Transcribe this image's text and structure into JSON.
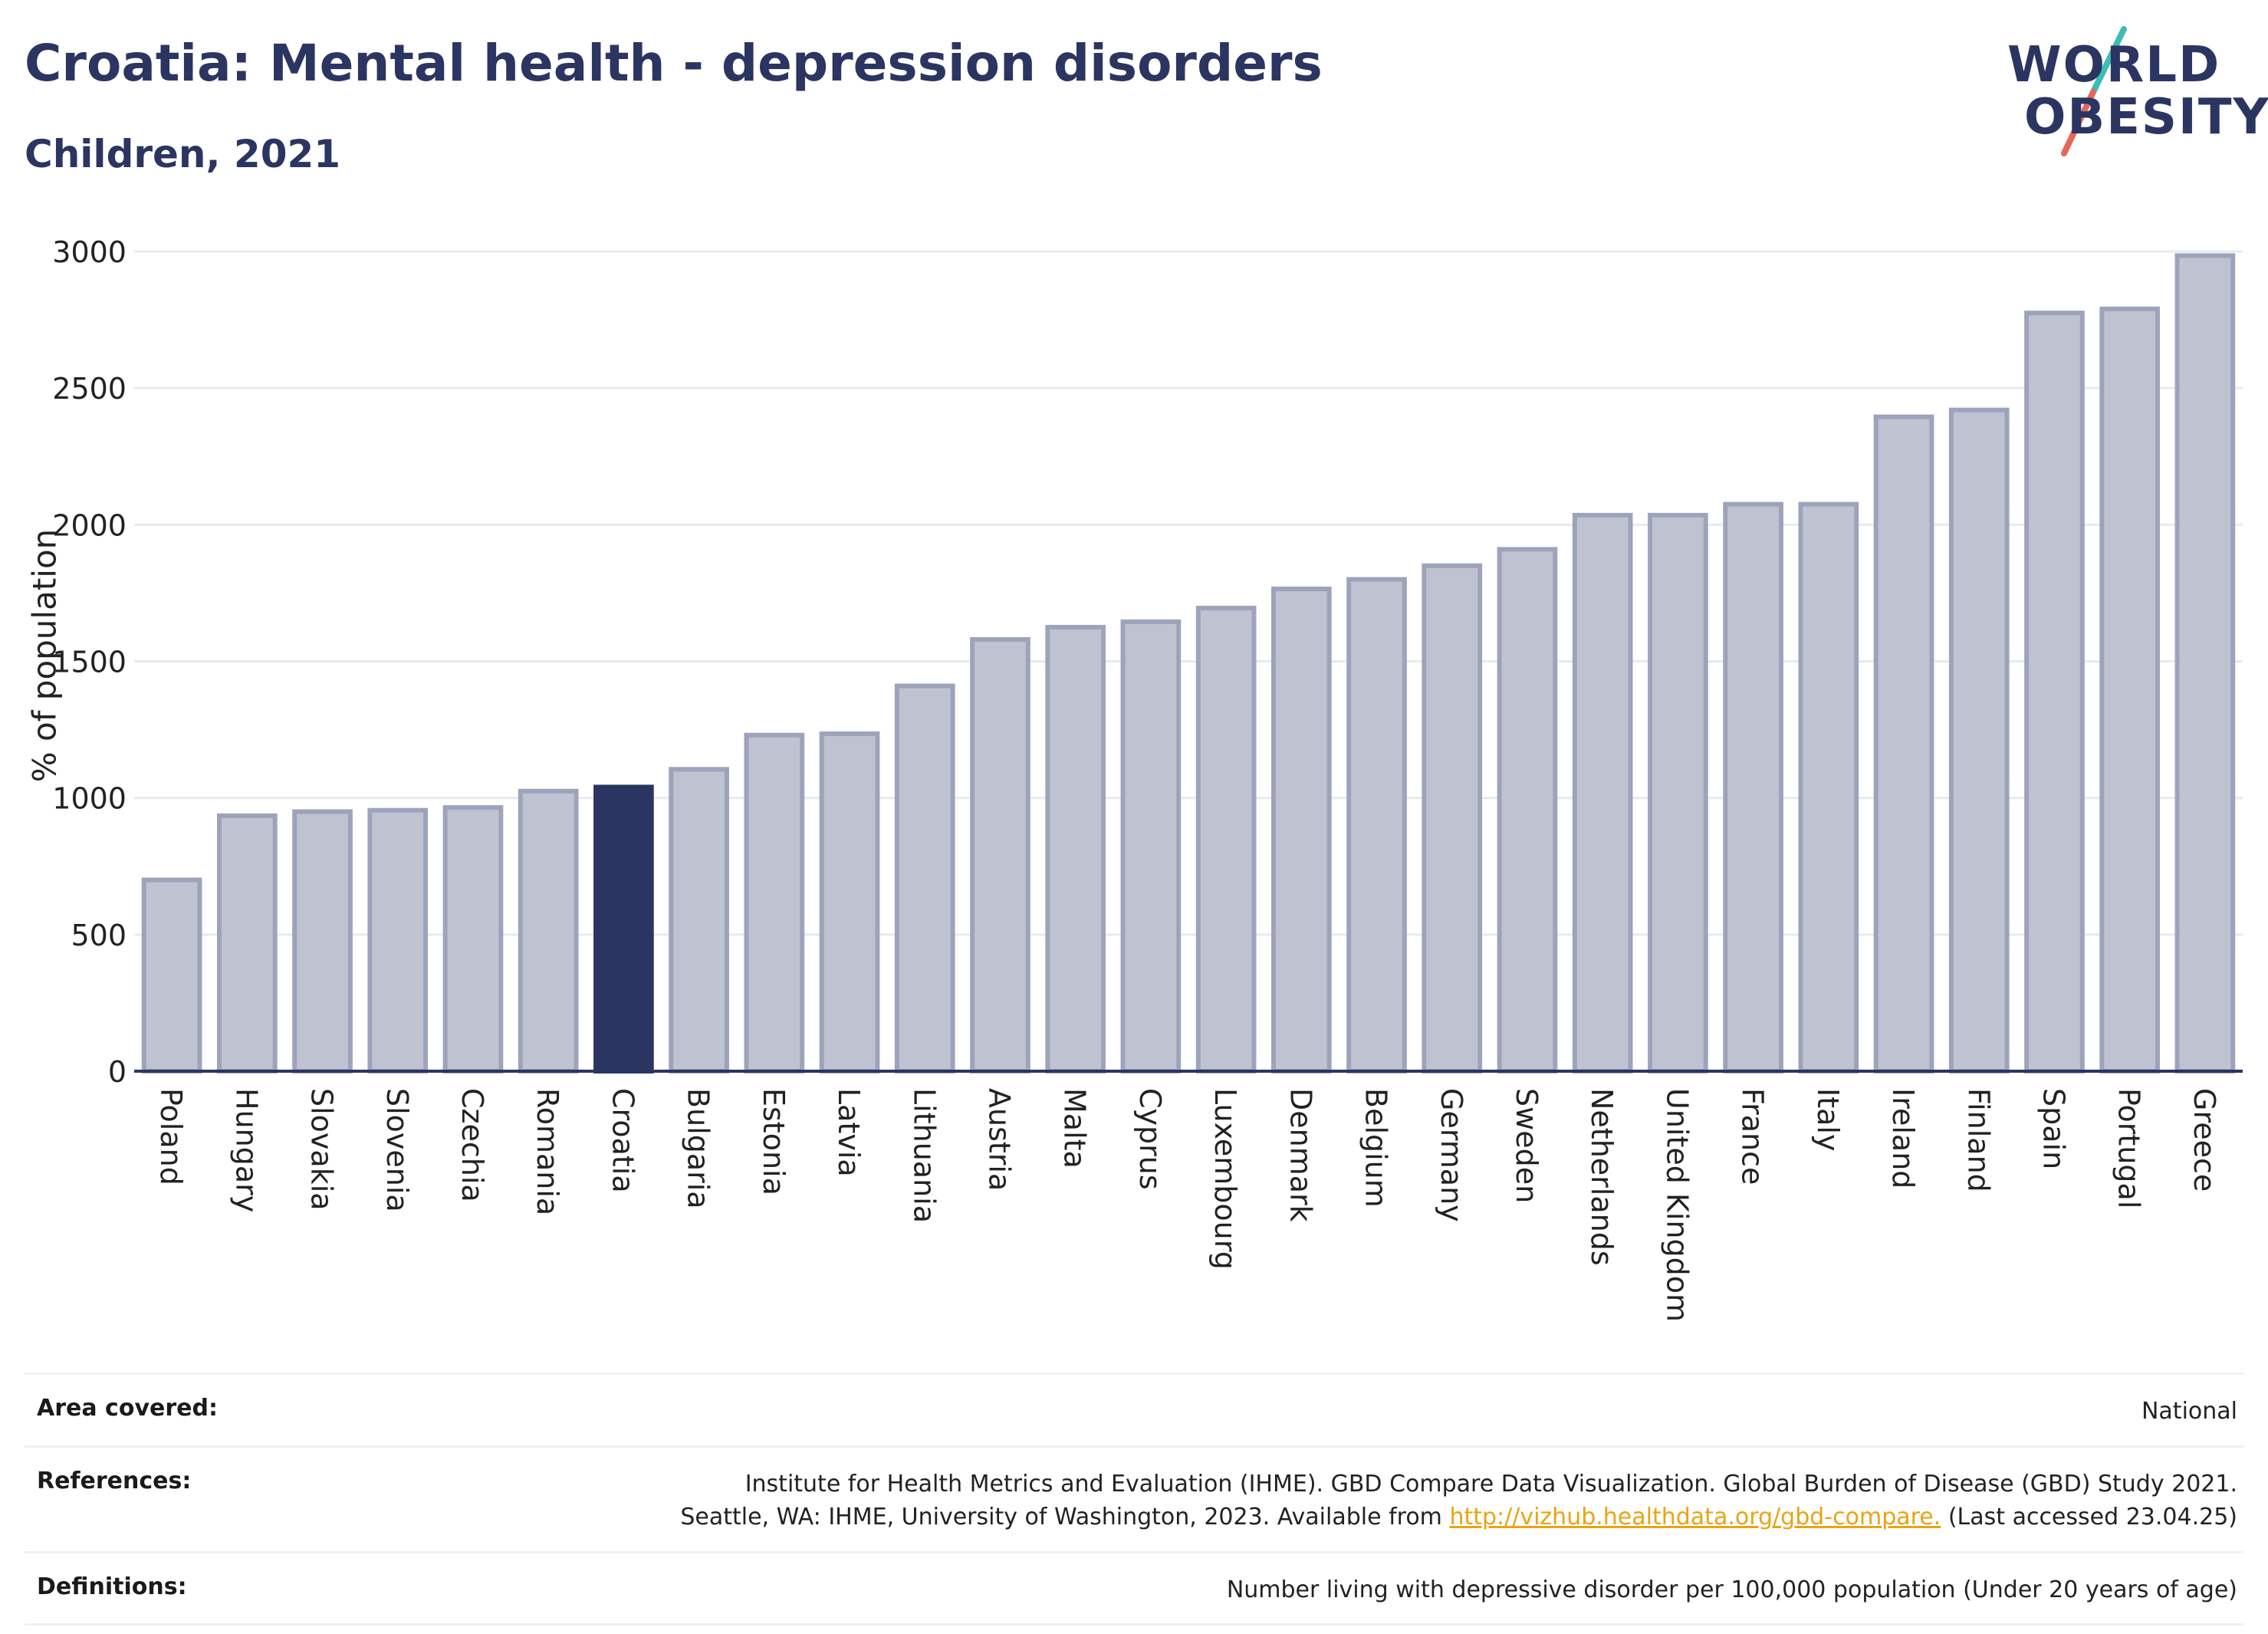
{
  "header": {
    "title": "Croatia: Mental health - depression disorders",
    "subtitle": "Children, 2021"
  },
  "logo": {
    "line1": "WORLD",
    "line2": "OBESITY",
    "slash_colors": [
      "#3bbdb3",
      "#e4685a"
    ]
  },
  "colors": {
    "highlight": "#2b3561",
    "bar": "#bfc3d1",
    "bar_edge": "#9da3bb",
    "axis": "#2b3561"
  },
  "chart_data": {
    "type": "bar",
    "ylabel": "% of population",
    "ylim": [
      0,
      3000
    ],
    "yticks": [
      0,
      500,
      1000,
      1500,
      2000,
      2500,
      3000
    ],
    "grid": true,
    "highlight": "Croatia",
    "categories": [
      "Poland",
      "Hungary",
      "Slovakia",
      "Slovenia",
      "Czechia",
      "Romania",
      "Croatia",
      "Bulgaria",
      "Estonia",
      "Latvia",
      "Lithuania",
      "Austria",
      "Malta",
      "Cyprus",
      "Luxembourg",
      "Denmark",
      "Belgium",
      "Germany",
      "Sweden",
      "Netherlands",
      "United Kingdom",
      "France",
      "Italy",
      "Ireland",
      "Finland",
      "Spain",
      "Portugal",
      "Greece"
    ],
    "values": [
      700,
      935,
      950,
      955,
      965,
      1025,
      1040,
      1105,
      1230,
      1235,
      1410,
      1580,
      1625,
      1645,
      1695,
      1765,
      1800,
      1850,
      1910,
      2035,
      2035,
      2075,
      2075,
      2395,
      2420,
      2775,
      2790,
      2985
    ]
  },
  "footer": [
    {
      "label": "Area covered:",
      "lines": [
        "National"
      ]
    },
    {
      "label": "References:",
      "lines": [
        "Institute for Health Metrics and Evaluation (IHME). GBD Compare Data Visualization. Global Burden of Disease (GBD) Study 2021.",
        "Seattle, WA: IHME, University of Washington, 2023. Available from "
      ],
      "link": "http://vizhub.healthdata.org/gbd-compare.",
      "after_link": " (Last accessed 23.04.25)"
    },
    {
      "label": "Definitions:",
      "lines": [
        "Number living with depressive disorder per 100,000 population (Under 20 years of age)"
      ]
    }
  ]
}
